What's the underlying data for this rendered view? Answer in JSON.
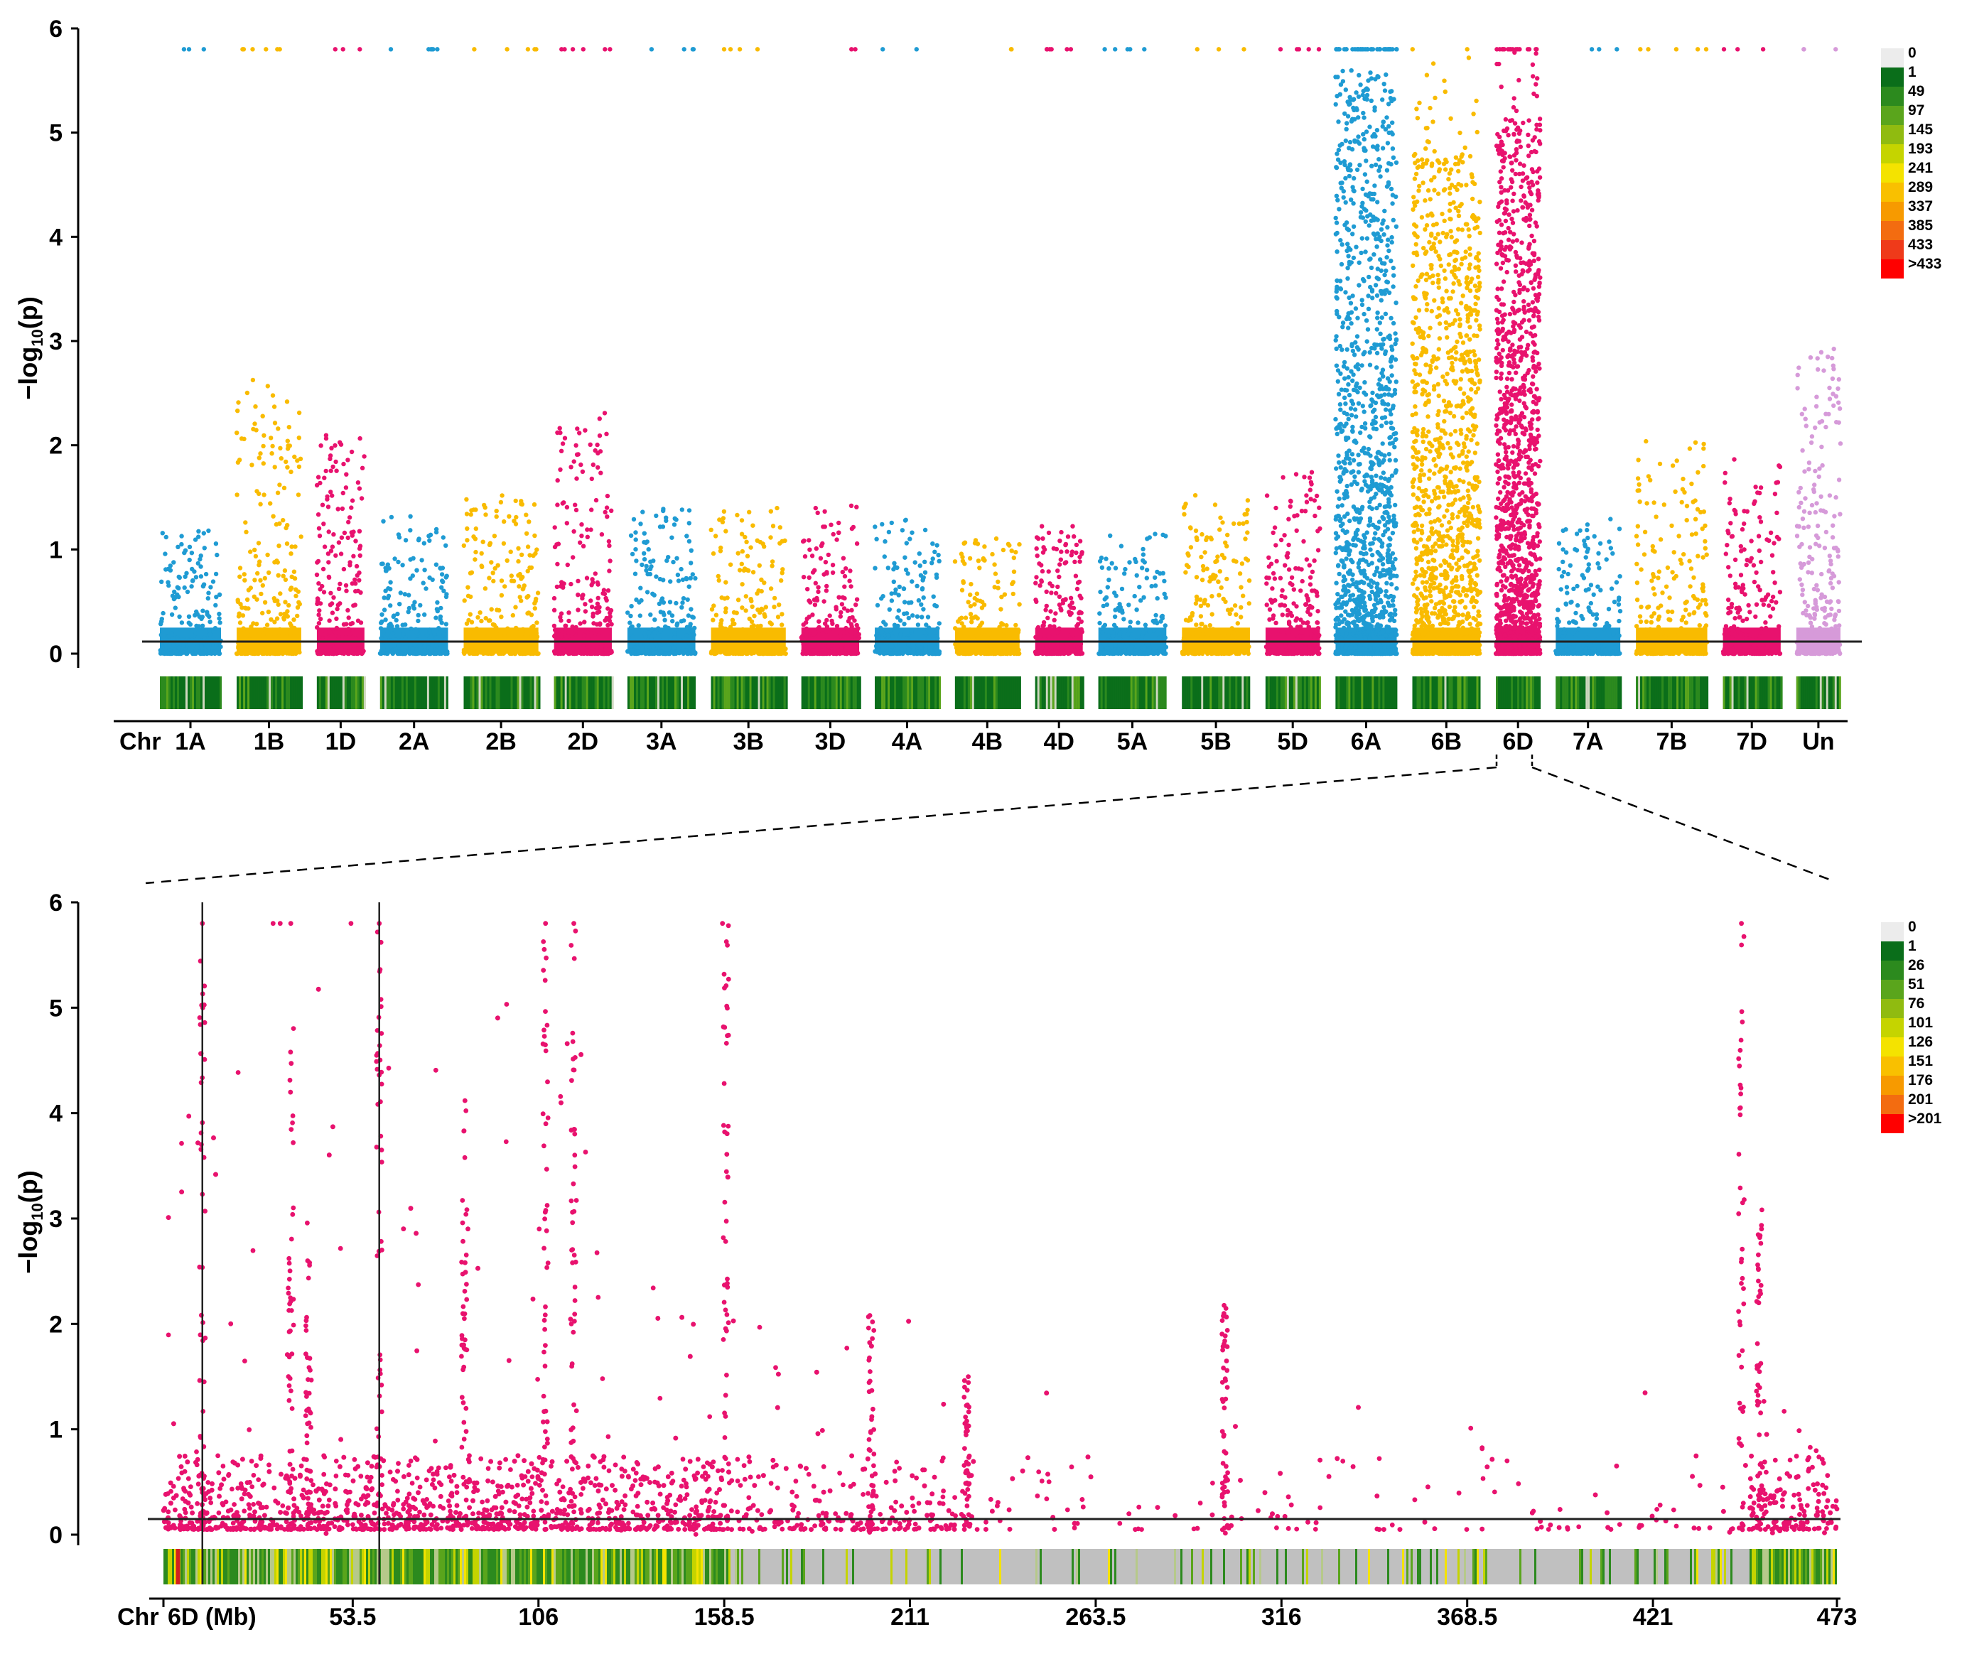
{
  "chart_data": [
    {
      "type": "scatter",
      "subtype": "manhattan",
      "ylabel": "−log",
      "ylabel_sub": "10",
      "ylabel_arg": "(p)",
      "ylim": [
        0,
        6
      ],
      "yticks": [
        "0",
        "1",
        "2",
        "3",
        "4",
        "5",
        "6"
      ],
      "threshold": 0.2,
      "x_prefix": "Chr",
      "chromosomes": [
        {
          "label": "1A",
          "color": "#1f9bd3",
          "peak": 0.5,
          "spread": 0.35
        },
        {
          "label": "1B",
          "color": "#f9bb00",
          "peak": 1.4,
          "spread": 0.5
        },
        {
          "label": "1D",
          "color": "#e8126e",
          "peak": 1.1,
          "spread": 0.4
        },
        {
          "label": "2A",
          "color": "#1f9bd3",
          "peak": 0.6,
          "spread": 0.35
        },
        {
          "label": "2B",
          "color": "#f9bb00",
          "peak": 0.7,
          "spread": 0.4
        },
        {
          "label": "2D",
          "color": "#e8126e",
          "peak": 1.2,
          "spread": 0.45
        },
        {
          "label": "3A",
          "color": "#1f9bd3",
          "peak": 0.6,
          "spread": 0.4
        },
        {
          "label": "3B",
          "color": "#f9bb00",
          "peak": 0.6,
          "spread": 0.4
        },
        {
          "label": "3D",
          "color": "#e8126e",
          "peak": 0.7,
          "spread": 0.35
        },
        {
          "label": "4A",
          "color": "#1f9bd3",
          "peak": 0.6,
          "spread": 0.35
        },
        {
          "label": "4B",
          "color": "#f9bb00",
          "peak": 0.5,
          "spread": 0.3
        },
        {
          "label": "4D",
          "color": "#e8126e",
          "peak": 0.6,
          "spread": 0.3
        },
        {
          "label": "5A",
          "color": "#1f9bd3",
          "peak": 0.5,
          "spread": 0.35
        },
        {
          "label": "5B",
          "color": "#f9bb00",
          "peak": 0.7,
          "spread": 0.4
        },
        {
          "label": "5D",
          "color": "#e8126e",
          "peak": 0.8,
          "spread": 0.45
        },
        {
          "label": "6A",
          "color": "#1f9bd3",
          "peak": 3.5,
          "spread": 1.2
        },
        {
          "label": "6B",
          "color": "#f9bb00",
          "peak": 3.0,
          "spread": 1.1
        },
        {
          "label": "6D",
          "color": "#e8126e",
          "peak": 3.2,
          "spread": 1.2
        },
        {
          "label": "7A",
          "color": "#1f9bd3",
          "peak": 0.6,
          "spread": 0.35
        },
        {
          "label": "7B",
          "color": "#f9bb00",
          "peak": 1.0,
          "spread": 0.5
        },
        {
          "label": "7D",
          "color": "#e8126e",
          "peak": 0.9,
          "spread": 0.45
        },
        {
          "label": "Un",
          "color": "#d69ad9",
          "peak": 1.5,
          "spread": 0.6
        }
      ],
      "legend": {
        "labels": [
          "0",
          "1",
          "49",
          "97",
          "145",
          "193",
          "241",
          "289",
          "337",
          "385",
          "433",
          ">433"
        ],
        "colors": [
          "#ececec",
          "#0a6e1a",
          "#2c8a1e",
          "#5aa51c",
          "#90bb10",
          "#c5d400",
          "#f4e300",
          "#f9c000",
          "#f79a00",
          "#f36c10",
          "#ef3a1a",
          "#ff0000"
        ],
        "position": "right"
      }
    },
    {
      "type": "scatter",
      "subtype": "manhattan-zoom",
      "ylabel": "−log",
      "ylabel_sub": "10",
      "ylabel_arg": "(p)",
      "ylim": [
        0,
        6
      ],
      "yticks": [
        "0",
        "1",
        "2",
        "3",
        "4",
        "5",
        "6"
      ],
      "threshold": 0.2,
      "color": "#e8126e",
      "xlim": [
        0,
        473
      ],
      "x_prefix": "Chr",
      "xlabel": "6D (Mb)",
      "xticks": [
        0,
        53.5,
        106,
        158.5,
        211,
        263.5,
        316,
        368.5,
        421,
        473
      ],
      "xtick_labels": [
        "6D (Mb)",
        "53.5",
        "106",
        "158.5",
        "211",
        "263.5",
        "316",
        "368.5",
        "421",
        "473"
      ],
      "vlines": [
        11,
        61
      ],
      "legend": {
        "labels": [
          "0",
          "1",
          "26",
          "51",
          "76",
          "101",
          "126",
          "151",
          "176",
          "201",
          ">201"
        ],
        "colors": [
          "#ececec",
          "#0a6e1a",
          "#2c8a1e",
          "#5aa51c",
          "#90bb10",
          "#c5d400",
          "#f4e300",
          "#f9c000",
          "#f79a00",
          "#f36c10",
          "#ff0000"
        ],
        "position": "right"
      }
    }
  ]
}
